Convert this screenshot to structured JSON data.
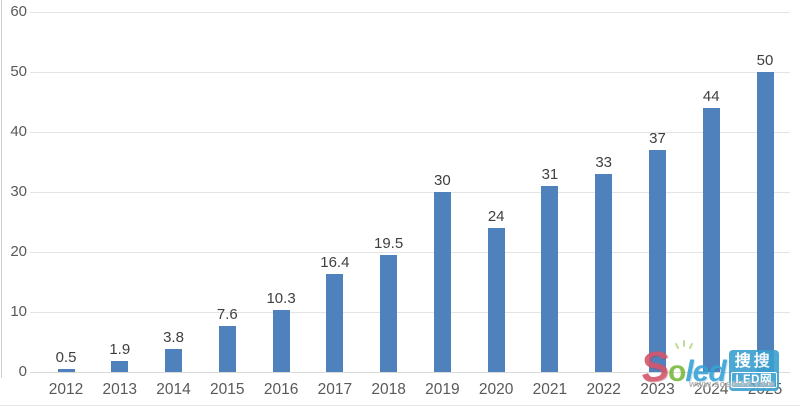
{
  "chart_data": {
    "type": "bar",
    "categories": [
      "2012",
      "2013",
      "2014",
      "2015",
      "2016",
      "2017",
      "2018",
      "2019",
      "2020",
      "2021",
      "2022",
      "2023",
      "2024",
      "2025"
    ],
    "values": [
      0.5,
      1.9,
      3.8,
      7.6,
      10.3,
      16.4,
      19.5,
      30,
      24,
      31,
      33,
      37,
      44,
      50
    ],
    "title": "",
    "xlabel": "",
    "ylabel": "",
    "ylim": [
      0,
      60
    ],
    "yticks": [
      0,
      10,
      20,
      30,
      40,
      50,
      60
    ],
    "grid": true,
    "legend": "none",
    "bar_color": "#4f82bd",
    "value_label_color": "#3f3f3f",
    "axis_text_color": "#595959",
    "gridline_color": "#e4e4e4"
  },
  "watermark": {
    "brand_s": "S",
    "brand_o": "o",
    "brand_led": "led",
    "badge_line1": "搜搜",
    "badge_line2": "LED网",
    "url": "www.sosoled.com",
    "colors": {
      "red": "#d4556a",
      "green": "#7cb93e",
      "blue": "#36a3d6",
      "badge_bg": "#3aa0cf"
    }
  }
}
